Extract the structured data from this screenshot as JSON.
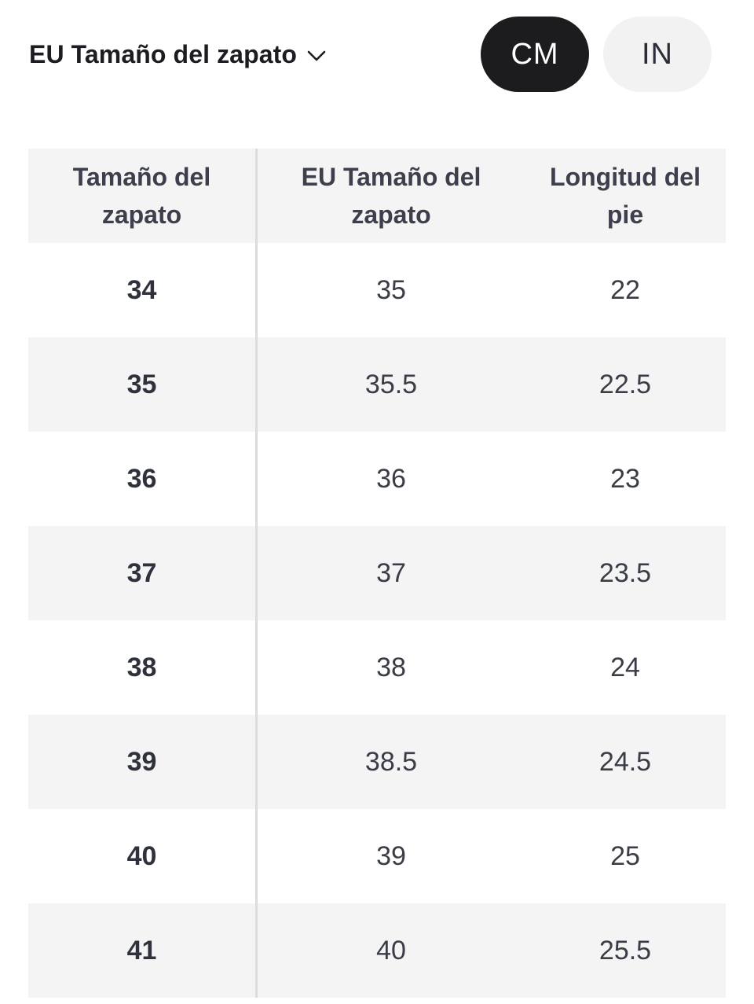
{
  "selector": {
    "label": "EU Tamaño del zapato",
    "icon": "chevron-down-icon"
  },
  "units": {
    "cm_label": "CM",
    "in_label": "IN",
    "selected": "CM"
  },
  "table": {
    "headers": [
      "Tamaño del zapato",
      "EU Tamaño del zapato",
      "Longitud del pie"
    ],
    "rows": [
      [
        "34",
        "35",
        "22"
      ],
      [
        "35",
        "35.5",
        "22.5"
      ],
      [
        "36",
        "36",
        "23"
      ],
      [
        "37",
        "37",
        "23.5"
      ],
      [
        "38",
        "38",
        "24"
      ],
      [
        "39",
        "38.5",
        "24.5"
      ],
      [
        "40",
        "39",
        "25"
      ],
      [
        "41",
        "40",
        "25.5"
      ]
    ]
  },
  "colors": {
    "toggle_selected_bg": "#1c1c1e",
    "toggle_unselected_bg": "#f2f2f2",
    "row_alt_bg": "#f4f4f5"
  }
}
